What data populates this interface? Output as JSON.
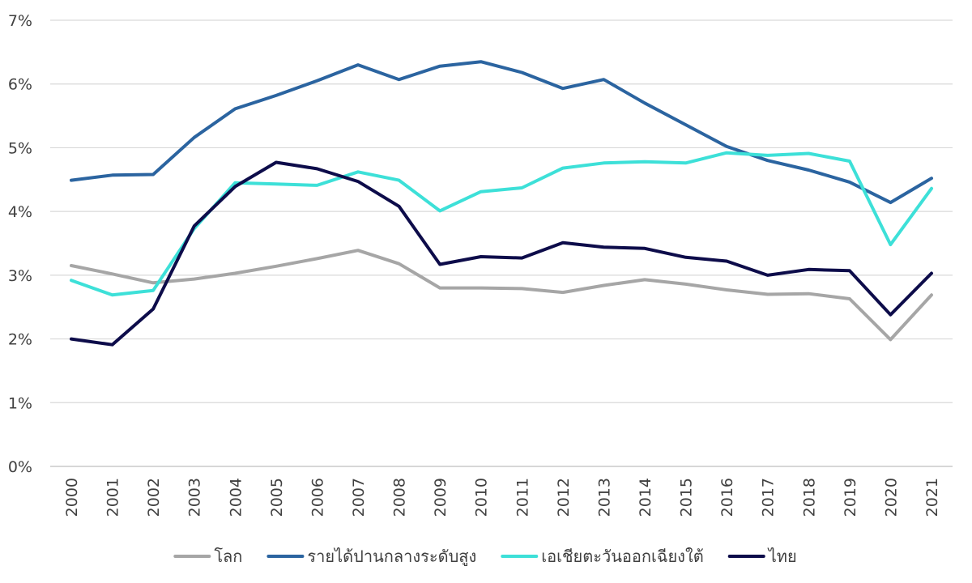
{
  "chart_data": {
    "type": "line",
    "title": "",
    "xlabel": "",
    "ylabel": "",
    "ylim": [
      0,
      7
    ],
    "yticks": [
      "0%",
      "1%",
      "2%",
      "3%",
      "4%",
      "5%",
      "6%",
      "7%"
    ],
    "grid": true,
    "legend_position": "bottom",
    "x": [
      "2000",
      "2001",
      "2002",
      "2003",
      "2004",
      "2005",
      "2006",
      "2007",
      "2008",
      "2009",
      "2010",
      "2011",
      "2012",
      "2013",
      "2014",
      "2015",
      "2016",
      "2017",
      "2018",
      "2019",
      "2020",
      "2021"
    ],
    "series": [
      {
        "name": "โลก",
        "color": "#a6a6a6",
        "values": [
          3.15,
          3.02,
          2.88,
          2.94,
          3.03,
          3.14,
          3.26,
          3.39,
          3.18,
          2.8,
          2.8,
          2.79,
          2.73,
          2.84,
          2.93,
          2.86,
          2.77,
          2.7,
          2.71,
          2.63,
          1.99,
          2.69
        ]
      },
      {
        "name": "รายได้ปานกลางระดับสูง",
        "color": "#2b64a0",
        "values": [
          4.49,
          4.57,
          4.58,
          5.16,
          5.61,
          5.82,
          6.05,
          6.3,
          6.07,
          6.28,
          6.35,
          6.18,
          5.93,
          6.07,
          5.7,
          5.36,
          5.02,
          4.8,
          4.65,
          4.46,
          4.14,
          4.52
        ]
      },
      {
        "name": "เอเชียตะวันออกเฉียงใต้",
        "color": "#3de0d8",
        "values": [
          2.92,
          2.69,
          2.76,
          3.73,
          4.45,
          4.43,
          4.41,
          4.62,
          4.49,
          4.01,
          4.31,
          4.37,
          4.68,
          4.76,
          4.78,
          4.76,
          4.92,
          4.88,
          4.91,
          4.79,
          3.48,
          4.36
        ]
      },
      {
        "name": "ไทย",
        "color": "#0d0c4a",
        "values": [
          2.0,
          1.91,
          2.47,
          3.77,
          4.39,
          4.77,
          4.67,
          4.47,
          4.08,
          3.17,
          3.29,
          3.27,
          3.51,
          3.44,
          3.42,
          3.28,
          3.22,
          3.0,
          3.09,
          3.07,
          2.38,
          3.03
        ]
      }
    ]
  }
}
